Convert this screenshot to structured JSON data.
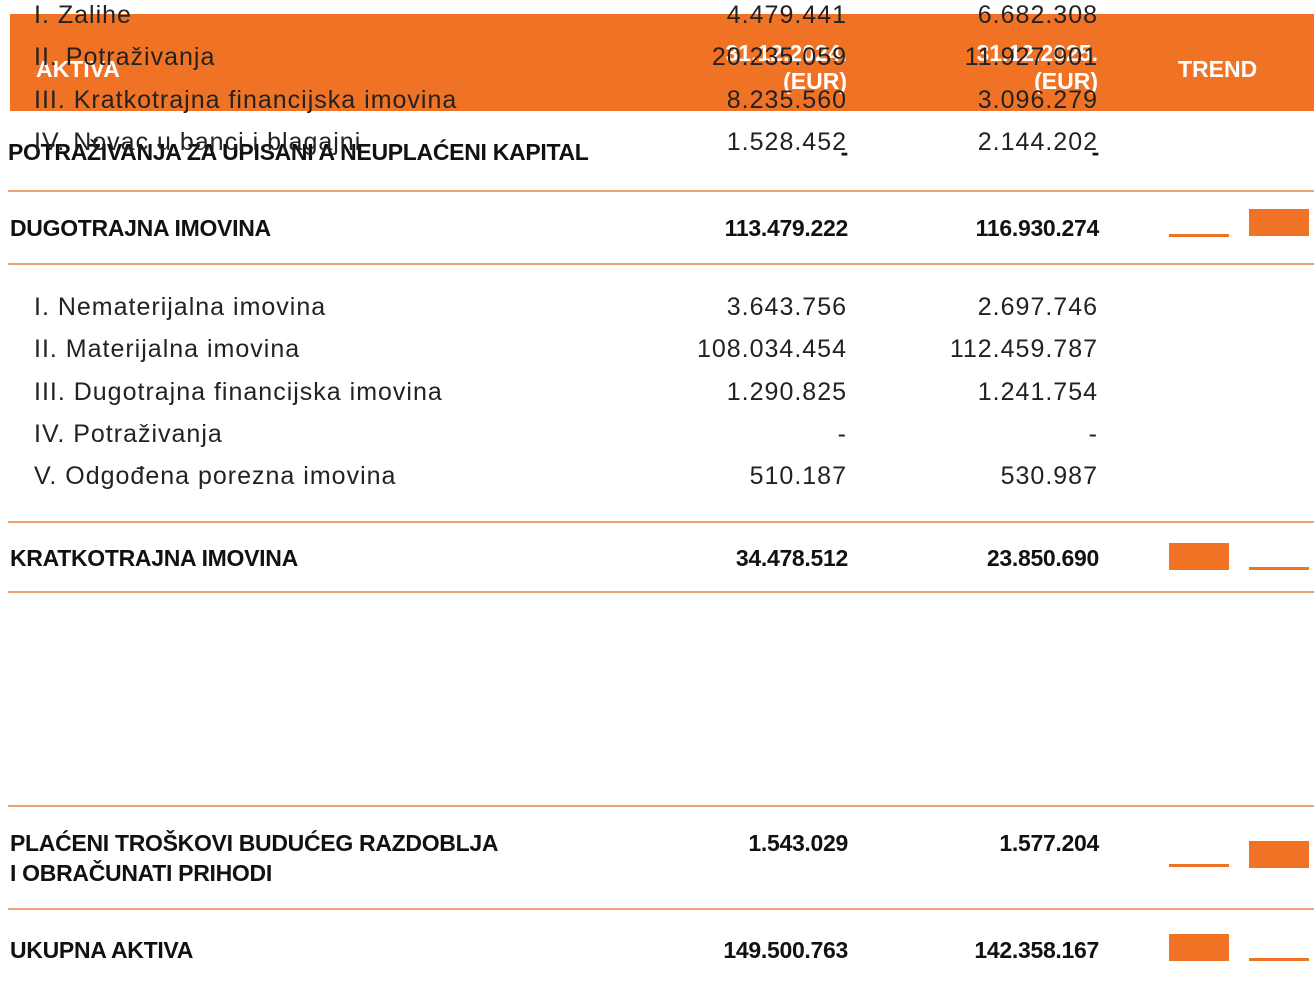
{
  "header": {
    "label": "AKTIVA",
    "col1": [
      "31.12.2024.",
      "(EUR)"
    ],
    "col2": [
      "31.12.2025.",
      "(EUR)"
    ],
    "trend": "TREND"
  },
  "sections": [
    {
      "label": [
        "POTRAŽIVANJA ZA UPISANI A NEUPLAĆENI KAPITAL"
      ],
      "v1": "-",
      "v2": "-",
      "items": []
    },
    {
      "label": [
        "DUGOTRAJNA IMOVINA"
      ],
      "v1": "113.479.222",
      "v2": "116.930.274",
      "items": [
        [
          "I. Nematerijalna imovina",
          "3.643.756",
          "2.697.746"
        ],
        [
          "II. Materijalna imovina",
          "108.034.454",
          "112.459.787"
        ],
        [
          "III. Dugotrajna financijska imovina",
          "1.290.825",
          "1.241.754"
        ],
        [
          "IV. Potraživanja",
          "-",
          "-"
        ],
        [
          "V. Odgođena porezna imovina",
          "510.187",
          "530.987"
        ]
      ]
    },
    {
      "label": [
        "KRATKOTRAJNA IMOVINA"
      ],
      "v1": "34.478.512",
      "v2": "23.850.690",
      "items": [
        [
          "I. Zalihe",
          "4.479.441",
          "6.682.308"
        ],
        [
          "II. Potraživanja",
          "20.235.059",
          "11.927.901"
        ],
        [
          "III. Kratkotrajna financijska imovina",
          "8.235.560",
          "3.096.279"
        ],
        [
          "IV. Novac u banci i blagajni",
          "1.528.452",
          "2.144.202"
        ]
      ]
    },
    {
      "label": [
        "PLAĆENI TROŠKOVI BUDUĆEG RAZDOBLJA",
        "I OBRAČUNATI PRIHODI"
      ],
      "v1": "1.543.029",
      "v2": "1.577.204",
      "items": []
    },
    {
      "label": [
        "UKUPNA AKTIVA"
      ],
      "v1": "149.500.763",
      "v2": "142.358.167",
      "items": []
    }
  ]
}
